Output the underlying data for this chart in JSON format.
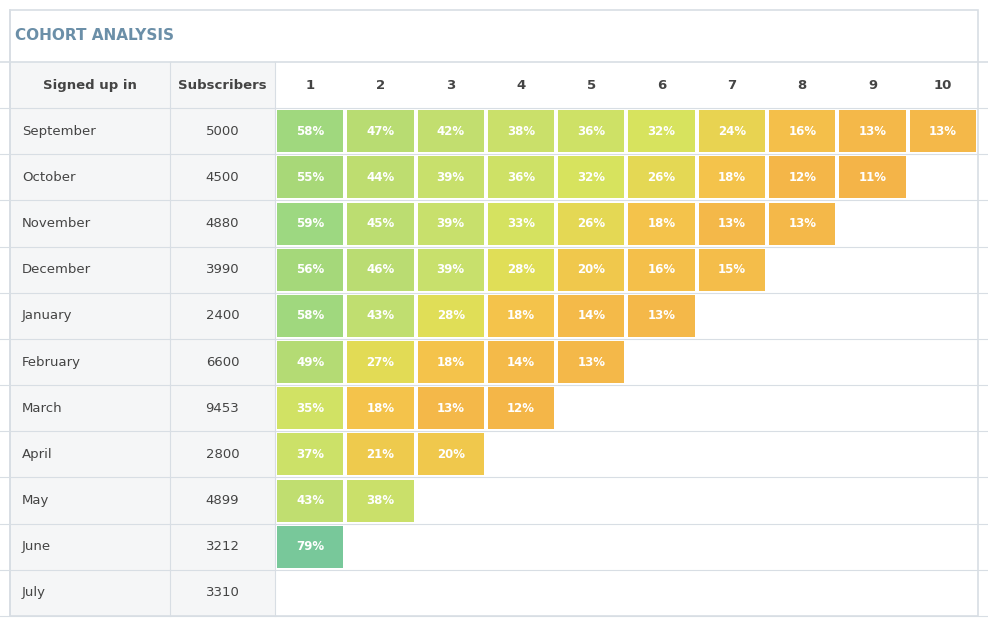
{
  "title": "COHORT ANALYSIS",
  "header_col1": "Signed up in",
  "header_col2": "Subscribers",
  "months": [
    "September",
    "October",
    "November",
    "December",
    "January",
    "February",
    "March",
    "April",
    "May",
    "June",
    "July"
  ],
  "subscribers": [
    5000,
    4500,
    4880,
    3990,
    2400,
    6600,
    9453,
    2800,
    4899,
    3212,
    3310
  ],
  "periods": [
    1,
    2,
    3,
    4,
    5,
    6,
    7,
    8,
    9,
    10
  ],
  "data": [
    [
      58,
      47,
      42,
      38,
      36,
      32,
      24,
      16,
      13,
      13
    ],
    [
      55,
      44,
      39,
      36,
      32,
      26,
      18,
      12,
      11,
      null
    ],
    [
      59,
      45,
      39,
      33,
      26,
      18,
      13,
      13,
      null,
      null
    ],
    [
      56,
      46,
      39,
      28,
      20,
      16,
      15,
      null,
      null,
      null
    ],
    [
      58,
      43,
      28,
      18,
      14,
      13,
      null,
      null,
      null,
      null
    ],
    [
      49,
      27,
      18,
      14,
      13,
      null,
      null,
      null,
      null,
      null
    ],
    [
      35,
      18,
      13,
      12,
      null,
      null,
      null,
      null,
      null,
      null
    ],
    [
      37,
      21,
      20,
      null,
      null,
      null,
      null,
      null,
      null,
      null
    ],
    [
      43,
      38,
      null,
      null,
      null,
      null,
      null,
      null,
      null,
      null
    ],
    [
      79,
      null,
      null,
      null,
      null,
      null,
      null,
      null,
      null,
      null
    ],
    [
      null,
      null,
      null,
      null,
      null,
      null,
      null,
      null,
      null,
      null
    ]
  ],
  "bg_color": "#ffffff",
  "title_color": "#6b8fa8",
  "header_text_color": "#444444",
  "cell_text_color": "#ffffff",
  "row_label_color": "#444444",
  "grid_line_color": "#d8dee4",
  "left_col_bg": "#f5f6f7",
  "title_fontsize": 11,
  "header_fontsize": 9.5,
  "cell_fontsize": 8.5,
  "row_fontsize": 9.5,
  "color_stops": [
    [
      79,
      "#78c89a"
    ],
    [
      58,
      "#a8d87a"
    ],
    [
      55,
      "#aada78"
    ],
    [
      59,
      "#a4d87c"
    ],
    [
      56,
      "#a8d87a"
    ],
    [
      49,
      "#c2df6e"
    ],
    [
      43,
      "#d0e46a"
    ],
    [
      37,
      "#cce46c"
    ],
    [
      35,
      "#d2e66a"
    ],
    [
      47,
      "#c6e070"
    ],
    [
      44,
      "#c8e06e"
    ],
    [
      45,
      "#c6e070"
    ],
    [
      46,
      "#c4e072"
    ],
    [
      42,
      "#cce46c"
    ],
    [
      38,
      "#d6e464"
    ],
    [
      39,
      "#d0e46a"
    ],
    [
      36,
      "#d6e464"
    ],
    [
      33,
      "#dce85e"
    ],
    [
      32,
      "#dce460"
    ],
    [
      28,
      "#e8e254"
    ],
    [
      27,
      "#e6d85a"
    ],
    [
      26,
      "#e4d85c"
    ],
    [
      24,
      "#f0ca50"
    ],
    [
      21,
      "#f0c84e"
    ],
    [
      20,
      "#f2c44c"
    ],
    [
      18,
      "#f2bc4a"
    ],
    [
      16,
      "#f4b848"
    ],
    [
      15,
      "#f4b648"
    ],
    [
      14,
      "#f4b448"
    ],
    [
      13,
      "#f4b248"
    ],
    [
      12,
      "#f4b248"
    ],
    [
      11,
      "#f4b248"
    ]
  ]
}
